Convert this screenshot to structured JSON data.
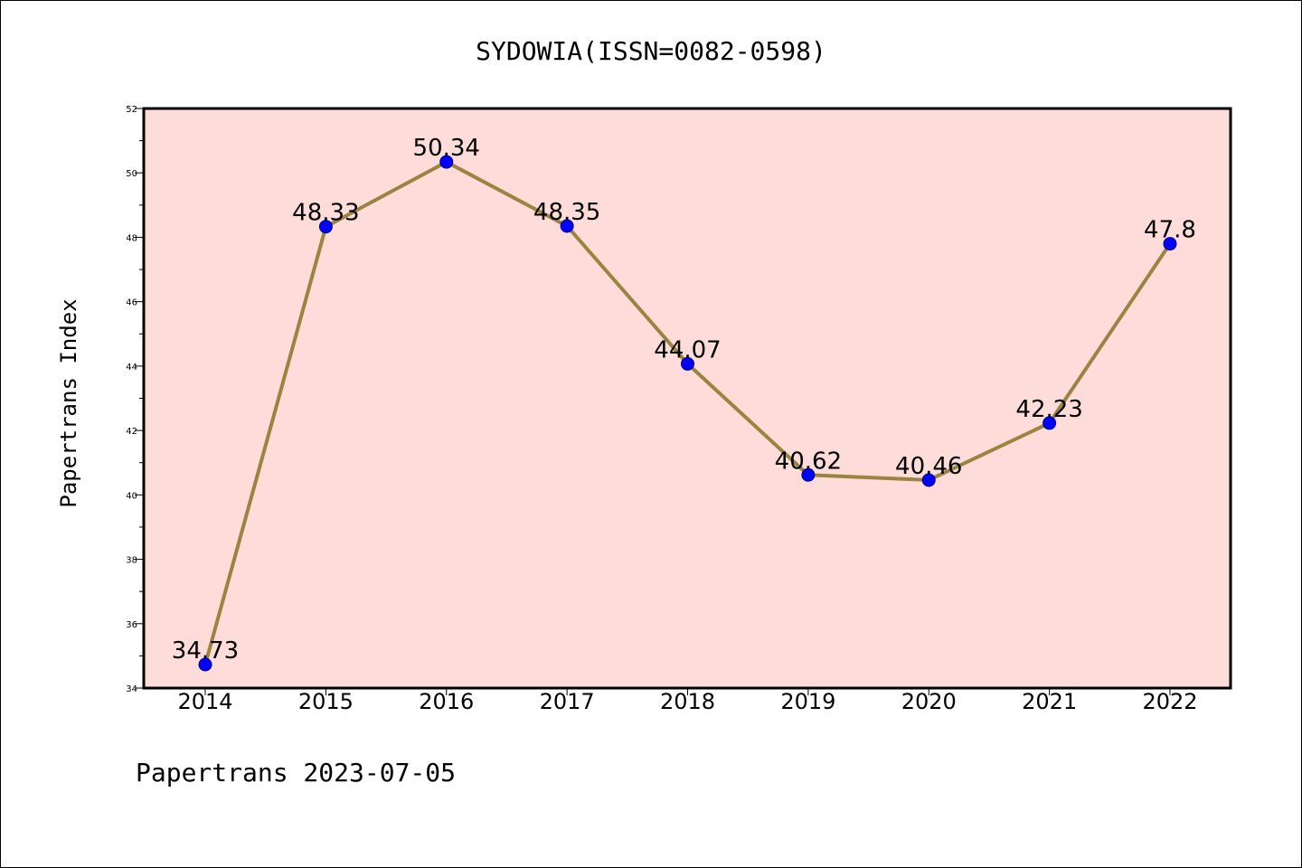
{
  "chart_data": {
    "type": "line",
    "title": "SYDOWIA(ISSN=0082-0598)",
    "xlabel": "",
    "ylabel": "Papertrans Index",
    "categories": [
      "2014",
      "2015",
      "2016",
      "2017",
      "2018",
      "2019",
      "2020",
      "2021",
      "2022"
    ],
    "series": [
      {
        "name": "Papertrans Index",
        "values": [
          34.73,
          48.33,
          50.34,
          48.35,
          44.07,
          40.62,
          40.46,
          42.23,
          47.8
        ],
        "labels": [
          "34.73",
          "48.33",
          "50.34",
          "48.35",
          "44.07",
          "40.62",
          "40.46",
          "42.23",
          "47.8"
        ]
      }
    ],
    "ylim": [
      34,
      52
    ],
    "yticks": [
      "34",
      "36",
      "38",
      "40",
      "42",
      "44",
      "46",
      "48",
      "50",
      "52"
    ],
    "grid": false,
    "colors": {
      "plot_background": "#fddcda",
      "line": "#9b8440",
      "marker": "#0000ff",
      "marker_edge": "#000080"
    }
  },
  "footer": {
    "text": "Papertrans 2023-07-05"
  }
}
